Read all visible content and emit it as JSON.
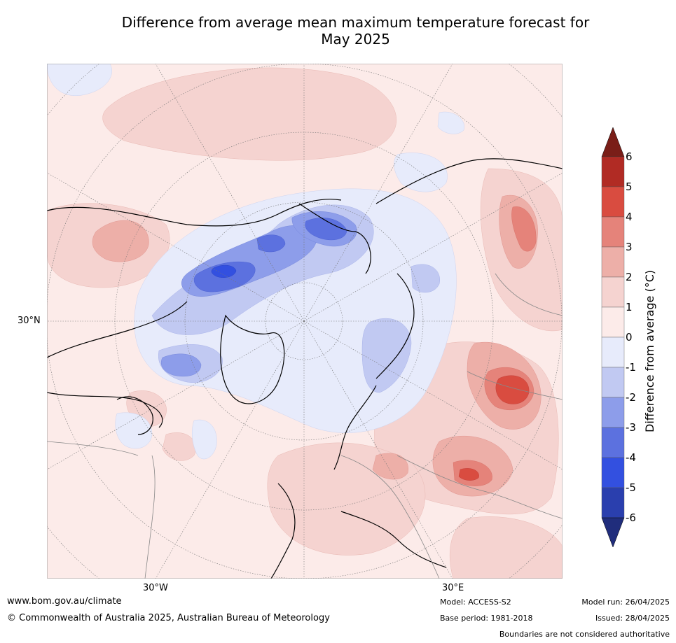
{
  "title_line1": "Difference from average mean maximum temperature forecast for",
  "title_line2": "May 2025",
  "map": {
    "label_lat": "30°N",
    "label_lon_w": "30°W",
    "label_lon_e": "30°E"
  },
  "colorbar": {
    "label": "Difference from average (°C)",
    "ticks": [
      "6",
      "5",
      "4",
      "3",
      "2",
      "1",
      "0",
      "-1",
      "-2",
      "-3",
      "-4",
      "-5",
      "-6"
    ],
    "colors": [
      "#b12b24",
      "#d94c40",
      "#e5837a",
      "#edafa8",
      "#f5d3d0",
      "#fcebe9",
      "#e7ebfb",
      "#c1c9f2",
      "#8d9dea",
      "#5c71df",
      "#3350e0",
      "#2a3fae"
    ],
    "over_color": "#7a1e18",
    "under_color": "#202d7c"
  },
  "footer": {
    "site": "www.bom.gov.au/climate",
    "copyright": "© Commonwealth of Australia 2025, Australian Bureau of Meteorology",
    "model": "Model: ACCESS-S2",
    "base": "Base period: 1981-2018",
    "run": "Model run: 26/04/2025",
    "issued": "Issued: 28/04/2025",
    "boundaries": "Boundaries are not considered authoritative"
  }
}
